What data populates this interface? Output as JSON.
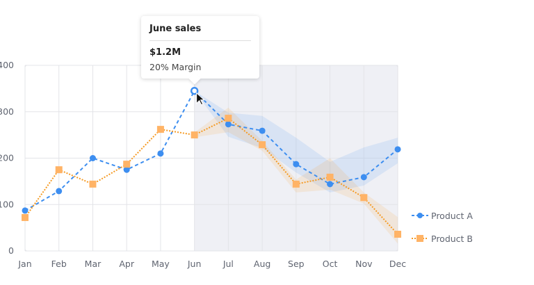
{
  "chart_data": {
    "type": "line",
    "categories": [
      "Jan",
      "Feb",
      "Mar",
      "Apr",
      "May",
      "Jun",
      "Jul",
      "Aug",
      "Sep",
      "Oct",
      "Nov",
      "Dec"
    ],
    "ylim": [
      0,
      400
    ],
    "yticks": [
      "0",
      "100",
      "200",
      "300",
      "400"
    ],
    "grid": true,
    "highlight_region_start": "Jun",
    "legend_position": "right",
    "series": [
      {
        "name": "Product A",
        "color": "#3d8ef0",
        "style": "dashed",
        "marker": "circle",
        "values": [
          87,
          129,
          200,
          175,
          210,
          345,
          273,
          259,
          187,
          144,
          159,
          219
        ],
        "band_upper": [
          null,
          null,
          null,
          null,
          null,
          345,
          298,
          291,
          244,
          192,
          223,
          244
        ],
        "band_lower": [
          null,
          null,
          null,
          null,
          null,
          345,
          246,
          222,
          169,
          126,
          141,
          189
        ]
      },
      {
        "name": "Product B",
        "color": "#f59a23",
        "style": "dotted",
        "marker": "square",
        "values": [
          72,
          175,
          144,
          187,
          262,
          250,
          286,
          229,
          144,
          159,
          115,
          36
        ],
        "band_upper": [
          null,
          null,
          null,
          null,
          null,
          255,
          309,
          237,
          154,
          200,
          126,
          73
        ],
        "band_lower": [
          null,
          null,
          null,
          null,
          null,
          245,
          256,
          216,
          126,
          132,
          102,
          16
        ]
      }
    ]
  },
  "tooltip": {
    "title": "June sales",
    "value": "$1.2M",
    "subtitle": "20% Margin"
  }
}
